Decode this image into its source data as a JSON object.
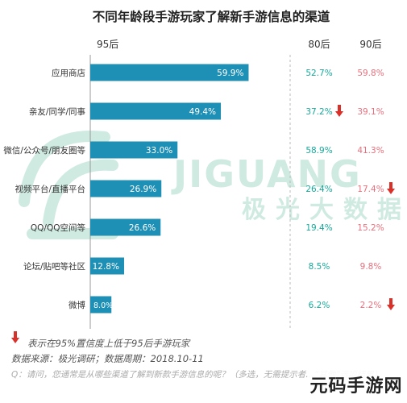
{
  "chart_data": {
    "type": "bar",
    "title": "不同年龄段手游玩家了解新手游信息的渠道",
    "series_label": "95后",
    "categories": [
      "应用商店",
      "亲友/同学/同事",
      "微信/公众号/朋友圈等",
      "视频平台/直播平台",
      "QQ/QQ空间等",
      "论坛/贴吧等社区",
      "微博"
    ],
    "values_display": [
      "59.9%",
      "49.4%",
      "33.0%",
      "26.9%",
      "26.6%",
      "12.8%",
      "8.0%"
    ],
    "values": [
      59.9,
      49.4,
      33.0,
      26.9,
      26.6,
      12.8,
      8.0
    ],
    "xlim": [
      0,
      100
    ],
    "columns": [
      {
        "name": "80后",
        "color": "#1aa89a",
        "values": [
          "52.7%",
          "37.2%",
          "58.9%",
          "26.4%",
          "19.4%",
          "8.5%",
          "6.2%"
        ],
        "down_arrow": [
          false,
          true,
          false,
          false,
          false,
          false,
          false
        ]
      },
      {
        "name": "90后",
        "color": "#e8707d",
        "values": [
          "59.8%",
          "39.1%",
          "41.3%",
          "17.4%",
          "15.2%",
          "9.8%",
          "2.2%"
        ],
        "down_arrow": [
          false,
          false,
          false,
          true,
          false,
          false,
          true
        ]
      }
    ],
    "colors": {
      "bar": "#1e8fb5",
      "title": "#222222",
      "arrow": "#d9302a",
      "divider": "#bbbbbb"
    }
  },
  "watermark": {
    "logo_text": "JIGUANG",
    "sub_text": "极光大数据"
  },
  "footer": {
    "note": "表示在95%置信度上低于95后手游玩家",
    "source": "数据来源：极光调研；数据周期：2018.10-11",
    "question": "Q：请问，您通常是从哪些渠道了解到新款手游信息的呢？（多选，无需提示者…“其他”选项结果）"
  },
  "badge": {
    "text": "元码手游网"
  }
}
